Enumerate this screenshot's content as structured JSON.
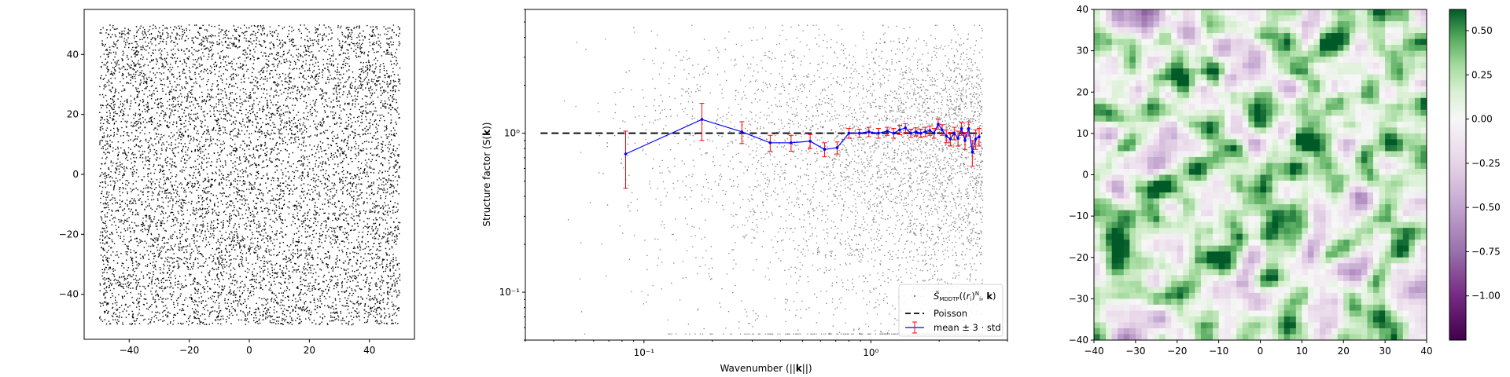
{
  "figure": {
    "width": 1920,
    "height": 480
  },
  "chart_data": [
    {
      "type": "scatter",
      "xlim": [
        -55,
        55
      ],
      "ylim": [
        -55,
        55
      ],
      "xticks": [
        -40,
        -20,
        0,
        20,
        40
      ],
      "yticks": [
        -40,
        -20,
        0,
        20,
        40
      ],
      "xtick_labels": [
        "−40",
        "−20",
        "0",
        "20",
        "40"
      ],
      "ytick_labels": [
        "−40",
        "−20",
        "0",
        "20",
        "40"
      ],
      "point_region": [
        -50,
        50
      ],
      "point_color": "#000000",
      "grid": false
    },
    {
      "type": "scatter",
      "scale": {
        "x": "log",
        "y": "log"
      },
      "xlim": [
        0.03,
        4.0
      ],
      "ylim": [
        0.05,
        6.0
      ],
      "xticks": [
        0.1,
        1
      ],
      "yticks": [
        0.1,
        1
      ],
      "xtick_labels": [
        "10⁻¹",
        "10⁰"
      ],
      "ytick_labels": [
        "10⁻¹",
        "10⁰"
      ],
      "xlabel": "Wavenumber (||k||)",
      "ylabel": "Structure factor (S(k))",
      "scatter_color": "#808080",
      "poisson_level": 1.0,
      "poisson_color": "#000000",
      "mean_color": "#0000ff",
      "err_color": "#ff0000",
      "mean_series": {
        "x": [
          0.083,
          0.18,
          0.27,
          0.36,
          0.445,
          0.54,
          0.625,
          0.71,
          0.8,
          0.89,
          0.98,
          1.08,
          1.18,
          1.26,
          1.34,
          1.42,
          1.5,
          1.58,
          1.66,
          1.74,
          1.82,
          1.9,
          1.98,
          2.06,
          2.15,
          2.24,
          2.33,
          2.42,
          2.51,
          2.6,
          2.7,
          2.8,
          2.9,
          3.0
        ],
        "y": [
          0.74,
          1.22,
          1.02,
          0.87,
          0.87,
          0.89,
          0.79,
          0.81,
          1.0,
          1.0,
          1.02,
          1.0,
          1.03,
          1.0,
          1.05,
          1.08,
          1.0,
          1.02,
          1.0,
          1.02,
          1.04,
          1.0,
          1.14,
          1.05,
          0.96,
          0.92,
          1.0,
          0.93,
          1.07,
          0.9,
          1.07,
          0.76,
          0.92,
          0.95
        ],
        "err": [
          0.29,
          0.32,
          0.16,
          0.1,
          0.1,
          0.09,
          0.08,
          0.07,
          0.07,
          0.06,
          0.07,
          0.07,
          0.06,
          0.07,
          0.07,
          0.07,
          0.06,
          0.06,
          0.06,
          0.07,
          0.07,
          0.07,
          0.08,
          0.08,
          0.09,
          0.09,
          0.09,
          0.1,
          0.1,
          0.11,
          0.11,
          0.14,
          0.13,
          0.12
        ]
      },
      "legend": {
        "placement": "lower-right",
        "entries": [
          "S̃ MDDTP((rᵢ)ᴺᵢ, k)",
          "Poisson",
          "mean ± 3 · std"
        ]
      }
    },
    {
      "type": "heatmap",
      "xlim": [
        -40,
        40
      ],
      "ylim": [
        -40,
        40
      ],
      "grid_size": 56,
      "xticks": [
        -40,
        -30,
        -20,
        -10,
        0,
        10,
        20,
        30,
        40
      ],
      "yticks": [
        -40,
        -30,
        -20,
        -10,
        0,
        10,
        20,
        30,
        40
      ],
      "xtick_labels": [
        "−40",
        "−30",
        "−20",
        "−10",
        "0",
        "10",
        "20",
        "30",
        "40"
      ],
      "ytick_labels": [
        "−40",
        "−30",
        "−20",
        "−10",
        "0",
        "10",
        "20",
        "30",
        "40"
      ],
      "colormap": "PRGn",
      "colorbar": {
        "vmin": -1.25,
        "vmax": 0.62,
        "ticks": [
          -1.0,
          -0.75,
          -0.5,
          -0.25,
          0.0,
          0.25,
          0.5
        ],
        "tick_labels": [
          "−1.00",
          "−0.75",
          "−0.50",
          "−0.25",
          "0.00",
          "0.25",
          "0.50"
        ]
      }
    }
  ]
}
